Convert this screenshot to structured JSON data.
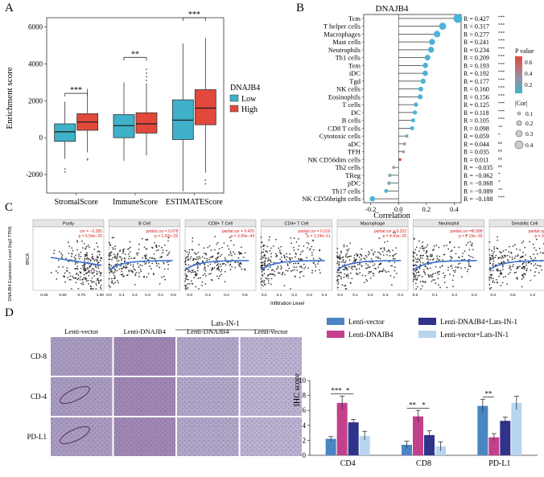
{
  "panels": {
    "a": "A",
    "b": "B",
    "c": "C",
    "d": "D"
  },
  "chart_data": [
    {
      "type": "box",
      "panel": "A",
      "ylabel": "Enrichment score",
      "ylim": [
        -3000,
        6500
      ],
      "yticks": [
        -2000,
        0,
        2000,
        4000,
        6000
      ],
      "categories": [
        "StromalScore",
        "ImmuneScore",
        "ESTIMATEScore"
      ],
      "legend_title": "DNAJB4",
      "groups": [
        {
          "name": "Low",
          "color": "#3fb1c9"
        },
        {
          "name": "High",
          "color": "#e2493b"
        }
      ],
      "boxes": [
        {
          "cat": 0,
          "group": 0,
          "whisker_low": -1150,
          "q1": -200,
          "median": 320,
          "q3": 750,
          "whisker_high": 1950,
          "outliers": [
            -1700,
            -1850
          ]
        },
        {
          "cat": 0,
          "group": 1,
          "whisker_low": -800,
          "q1": 400,
          "median": 850,
          "q3": 1300,
          "whisker_high": 2650,
          "outliers": [
            -1150,
            -1200
          ]
        },
        {
          "cat": 1,
          "group": 0,
          "whisker_low": -1250,
          "q1": 0,
          "median": 650,
          "q3": 1250,
          "whisker_high": 3000,
          "outliers": []
        },
        {
          "cat": 1,
          "group": 1,
          "whisker_low": -950,
          "q1": 250,
          "median": 750,
          "q3": 1350,
          "whisker_high": 2950,
          "outliers": [
            3100,
            3300,
            3500,
            3700
          ]
        },
        {
          "cat": 2,
          "group": 0,
          "whisker_low": -2900,
          "q1": -100,
          "median": 950,
          "q3": 2050,
          "whisker_high": 5100,
          "outliers": []
        },
        {
          "cat": 2,
          "group": 1,
          "whisker_low": -1900,
          "q1": 700,
          "median": 1600,
          "q3": 2600,
          "whisker_high": 5400,
          "outliers": [
            -2300,
            -2500
          ]
        }
      ],
      "significance": [
        "***",
        "**",
        "***"
      ]
    },
    {
      "type": "lollipop",
      "panel": "B",
      "title": "DNAJB4",
      "xlabel": "Correlation",
      "xlim": [
        -0.25,
        0.45
      ],
      "xticks": [
        -0.2,
        0.0,
        0.2,
        0.4
      ],
      "legend_pvalue_title": "P value",
      "legend_pvalue_ticks": [
        "0.6",
        "0.4",
        "0.2"
      ],
      "legend_cor_title": "|Cor|",
      "legend_cor_ticks": [
        "0.1",
        "0.2",
        "0.3",
        "0.4"
      ],
      "rows": [
        {
          "label": "Tcm",
          "r": 0.427,
          "text": "R = 0.427",
          "sig": "***",
          "color": "#4ab3d6"
        },
        {
          "label": "T helper cells",
          "r": 0.317,
          "text": "R = 0.317",
          "sig": "***",
          "color": "#4ab3d6"
        },
        {
          "label": "Macrophages",
          "r": 0.277,
          "text": "R = 0.277",
          "sig": "***",
          "color": "#4ab3d6"
        },
        {
          "label": "Mast cells",
          "r": 0.241,
          "text": "R = 0.241",
          "sig": "***",
          "color": "#4ab3d6"
        },
        {
          "label": "Neutrophils",
          "r": 0.234,
          "text": "R = 0.234",
          "sig": "***",
          "color": "#4ab3d6"
        },
        {
          "label": "Th1 cells",
          "r": 0.209,
          "text": "R = 0.209",
          "sig": "***",
          "color": "#4ab3d6"
        },
        {
          "label": "Tem",
          "r": 0.193,
          "text": "R = 0.193",
          "sig": "***",
          "color": "#4ab3d6"
        },
        {
          "label": "iDC",
          "r": 0.192,
          "text": "R = 0.192",
          "sig": "***",
          "color": "#4ab3d6"
        },
        {
          "label": "Tgd",
          "r": 0.177,
          "text": "R = 0.177",
          "sig": "***",
          "color": "#4ab3d6"
        },
        {
          "label": "NK cells",
          "r": 0.16,
          "text": "R = 0.160",
          "sig": "***",
          "color": "#4ab3d6"
        },
        {
          "label": "Eosinophils",
          "r": 0.156,
          "text": "R = 0.156",
          "sig": "***",
          "color": "#4ab3d6"
        },
        {
          "label": "T cells",
          "r": 0.125,
          "text": "R = 0.125",
          "sig": "***",
          "color": "#4ab3d6"
        },
        {
          "label": "DC",
          "r": 0.118,
          "text": "R = 0.118",
          "sig": "***",
          "color": "#4ab3d6"
        },
        {
          "label": "B cells",
          "r": 0.105,
          "text": "R = 0.105",
          "sig": "***",
          "color": "#4ab3d6"
        },
        {
          "label": "CD8 T cells",
          "r": 0.098,
          "text": "R = 0.098",
          "sig": "**",
          "color": "#4ab3d6"
        },
        {
          "label": "Cytotoxic cells",
          "r": 0.059,
          "text": "R = 0.059",
          "sig": "*",
          "color": "#7aaab8"
        },
        {
          "label": "aDC",
          "r": 0.044,
          "text": "R = 0.044",
          "sig": "ns",
          "color": "#a0a0a0"
        },
        {
          "label": "TFH",
          "r": 0.035,
          "text": "R = 0.035",
          "sig": "ns",
          "color": "#a0a0a0"
        },
        {
          "label": "NK CD56dim cells",
          "r": 0.011,
          "text": "R = 0.011",
          "sig": "ns",
          "color": "#e2493b"
        },
        {
          "label": "Th2 cells",
          "r": -0.035,
          "text": "R = −0.035",
          "sig": "ns",
          "color": "#a0a0a0"
        },
        {
          "label": "TReg",
          "r": -0.062,
          "text": "R = −0.062",
          "sig": "*",
          "color": "#7aaab8"
        },
        {
          "label": "pDC",
          "r": -0.068,
          "text": "R = −0.068",
          "sig": "*",
          "color": "#7aaab8"
        },
        {
          "label": "Th17 cells",
          "r": -0.089,
          "text": "R = −0.089",
          "sig": "**",
          "color": "#4ab3d6"
        },
        {
          "label": "NK CD56bright cells",
          "r": -0.188,
          "text": "R = −0.188",
          "sig": "***",
          "color": "#4ab3d6"
        }
      ]
    },
    {
      "type": "scatter",
      "panel": "C",
      "ylabel": "DNAJB4 Expression Level (log2 TPM)",
      "ylabel_short": "BRCA",
      "xlabel": "Infiltration Level",
      "facets": [
        {
          "name": "Purity",
          "stat": "cor = −0.285",
          "p": "p = 5.54e−20",
          "xticks": [
            "0.25",
            "0.50",
            "0.75",
            "1.00"
          ],
          "xmin": 0.1,
          "xmax": 1.05
        },
        {
          "name": "B Cell",
          "stat": "partial.cor = 0.078",
          "p": "p = 1.42e−02",
          "xticks": [
            "0.0",
            "0.1",
            "0.2",
            "0.3",
            "0.4",
            "0.5"
          ],
          "xmin": 0,
          "xmax": 0.55
        },
        {
          "name": "CD8+ T Cell",
          "stat": "partial.cor = 0.425",
          "p": "p = 3.90e−44",
          "xticks": [
            "0.0",
            "0.2",
            "0.4",
            "0.6"
          ],
          "xmin": -0.05,
          "xmax": 0.72
        },
        {
          "name": "CD4+ T Cell",
          "stat": "partial.cor = 0.216",
          "p": "p = 1.24e−11",
          "xticks": [
            "0.0",
            "0.1",
            "0.2",
            "0.3",
            "0.4"
          ],
          "xmin": -0.02,
          "xmax": 0.45
        },
        {
          "name": "Macrophage",
          "stat": "partial.cor = 0.322",
          "p": "p = 4.42e−25",
          "xticks": [
            "0.0",
            "0.1",
            "0.2",
            "0.3",
            "0.4"
          ],
          "xmin": -0.02,
          "xmax": 0.45
        },
        {
          "name": "Neutrophil",
          "stat": "partial.cor = 0.398",
          "p": "p = 7.15e−30",
          "xticks": [
            "0.0",
            "0.1",
            "0.2",
            "0.3"
          ],
          "xmin": -0.01,
          "xmax": 0.35
        },
        {
          "name": "Dendritic Cell",
          "stat": "partial.cor = 0.26",
          "p": "p = 3.76e−16",
          "xticks": [
            "0.0",
            "0.5",
            "1.0",
            "1.5"
          ],
          "xmin": -0.1,
          "xmax": 1.7
        }
      ]
    },
    {
      "type": "bar",
      "panel": "D",
      "ylabel": "IHC score",
      "ylim": [
        0,
        10
      ],
      "yticks": [
        0,
        2,
        4,
        6,
        8,
        10
      ],
      "categories": [
        "CD4",
        "CD8",
        "PD-L1"
      ],
      "series": [
        {
          "name": "Lenti-vector",
          "color": "#4a85c4",
          "values": [
            2.2,
            1.4,
            6.6
          ],
          "errors": [
            0.3,
            0.5,
            0.9
          ]
        },
        {
          "name": "Lenti-DNAJB4",
          "color": "#c3408c",
          "values": [
            7.0,
            5.2,
            2.4
          ],
          "errors": [
            0.9,
            0.8,
            0.5
          ]
        },
        {
          "name": "Lenti-DNAJB4+Lats-IN-1",
          "color": "#30338a",
          "values": [
            4.4,
            2.7,
            4.6
          ],
          "errors": [
            0.4,
            0.6,
            0.5
          ]
        },
        {
          "name": "Lenti-vector+Lats-IN-1",
          "color": "#b8d5f0",
          "values": [
            2.6,
            1.2,
            7.0
          ],
          "errors": [
            0.6,
            0.6,
            0.9
          ]
        }
      ],
      "significance": [
        {
          "cat": 0,
          "from": 0,
          "to": 1,
          "label": "***"
        },
        {
          "cat": 0,
          "from": 1,
          "to": 2,
          "label": "*"
        },
        {
          "cat": 1,
          "from": 0,
          "to": 1,
          "label": "**"
        },
        {
          "cat": 1,
          "from": 1,
          "to": 2,
          "label": "*"
        },
        {
          "cat": 2,
          "from": 0,
          "to": 1,
          "label": "**"
        }
      ]
    }
  ],
  "ihc_grid": {
    "group_header": "Lats-IN-1",
    "columns": [
      "Lenti-vector",
      "Lenti-DNAJB4",
      "Lenti-DNAJB4",
      "Lenti-vector"
    ],
    "rows": [
      "CD-8",
      "CD-4",
      "PD-L1"
    ],
    "colors": [
      "#a89bbf",
      "#9f87b4",
      "#b1a6c8",
      "#b9b1cf"
    ]
  }
}
